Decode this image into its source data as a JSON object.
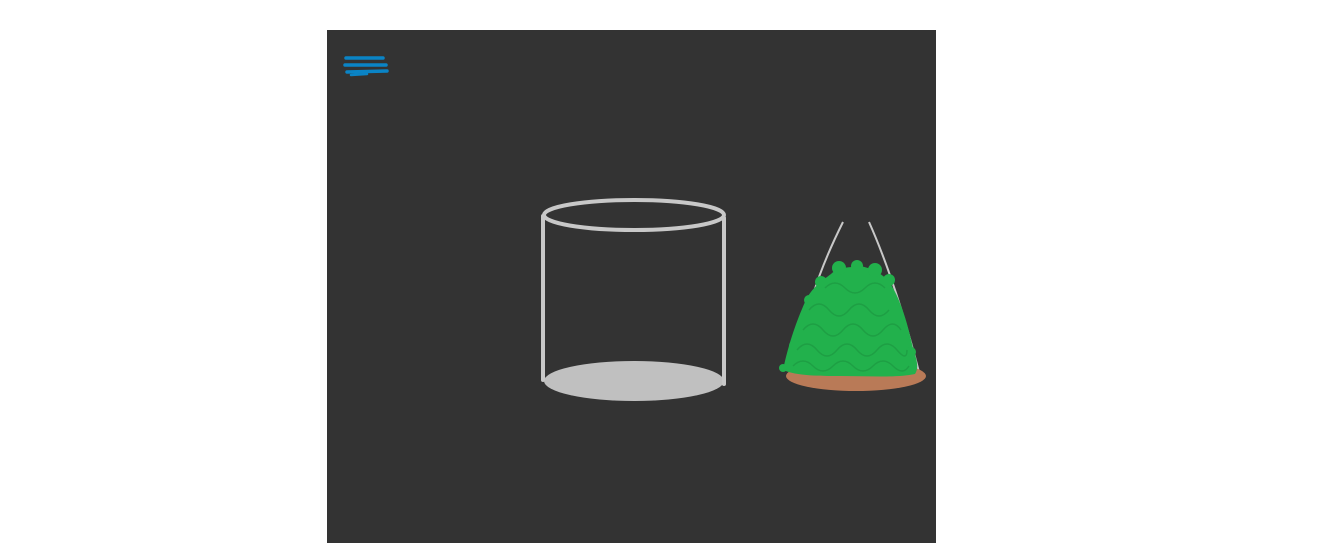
{
  "colors": {
    "background": "#333333",
    "page": "#ffffff",
    "menu_accent": "#0a84c6",
    "glass_outline": "#c8c8c8",
    "glass_base": "#c0c0c0",
    "plant_foliage": "#22b14c",
    "pot_soil": "#b97a57",
    "hanger_string": "#c8c8c8"
  },
  "icons": {
    "menu": "hamburger-menu-icon"
  }
}
